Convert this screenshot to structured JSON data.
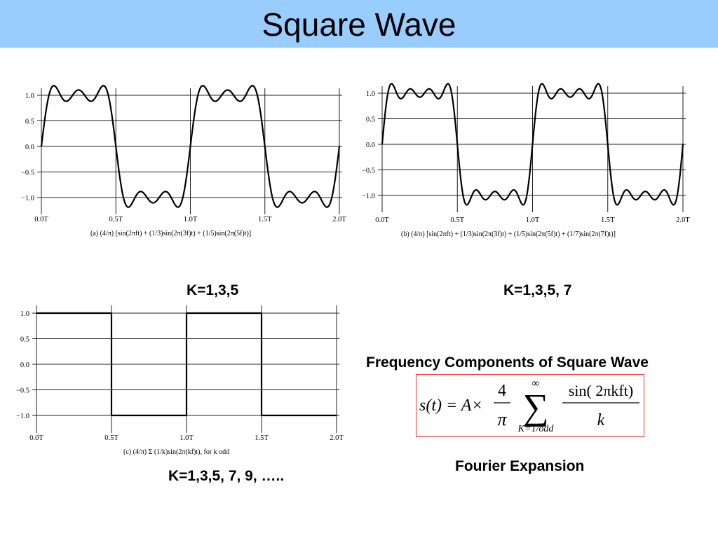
{
  "header": {
    "title": "Square Wave"
  },
  "labels": {
    "k_a": "K=1,3,5",
    "k_b": "K=1,3,5, 7",
    "k_c": "K=1,3,5, 7, 9, …..",
    "freq_title": "Frequency Components of Square Wave",
    "fourier_title": "Fourier Expansion"
  },
  "formula": {
    "lhs": "s(t) = A×",
    "numerator": "4",
    "denominator": "π",
    "sum_symbol": "∑",
    "upper_limit": "∞",
    "lower_limit": "K=1/odd",
    "frac_num": "sin( 2πkft)",
    "frac_den": "k"
  },
  "chart_data": [
    {
      "type": "line",
      "x_tick_labels": [
        "0.0T",
        "0.5T",
        "1.0T",
        "1.5T",
        "2.0T"
      ],
      "y_tick_labels": [
        "1.0",
        "0.5",
        "0.0",
        "−0.5",
        "−1.0"
      ],
      "y_ticks": [
        1.0,
        0.5,
        0.0,
        -0.5,
        -1.0
      ],
      "xlim": [
        0,
        2
      ],
      "ylim": [
        -1.25,
        1.25
      ],
      "harmonics": [
        1,
        3,
        5
      ],
      "caption": "(a) (4/π) [sin(2πft) + (1/3)sin(2π(3f)t) + (1/5)sin(2π(5f)t)]"
    },
    {
      "type": "line",
      "x_tick_labels": [
        "0.0T",
        "0.5T",
        "1.0T",
        "1.5T",
        "2.0T"
      ],
      "y_tick_labels": [
        "1.0",
        "0.5",
        "0.0",
        "−0.5",
        "−1.0"
      ],
      "y_ticks": [
        1.0,
        0.5,
        0.0,
        -0.5,
        -1.0
      ],
      "xlim": [
        0,
        2
      ],
      "ylim": [
        -1.25,
        1.25
      ],
      "harmonics": [
        1,
        3,
        5,
        7
      ],
      "caption": "(b) (4/π) [sin(2πft) + (1/3)sin(2π(3f)t) + (1/5)sin(2π(5f)t) + (1/7)sin(2π(7f)t)]"
    },
    {
      "type": "line",
      "x_tick_labels": [
        "0.0T",
        "0.5T",
        "1.0T",
        "1.5T",
        "2.0T"
      ],
      "y_tick_labels": [
        "1.0",
        "0.5",
        "0.0",
        "−0.5",
        "−1.0"
      ],
      "y_ticks": [
        1.0,
        0.5,
        0.0,
        -0.5,
        -1.0
      ],
      "xlim": [
        0,
        2
      ],
      "ylim": [
        -1.25,
        1.25
      ],
      "harmonics": "all odd k",
      "caption": "(c) (4/π) Σ (1/k)sin(2π(kf)t), for k odd"
    }
  ]
}
